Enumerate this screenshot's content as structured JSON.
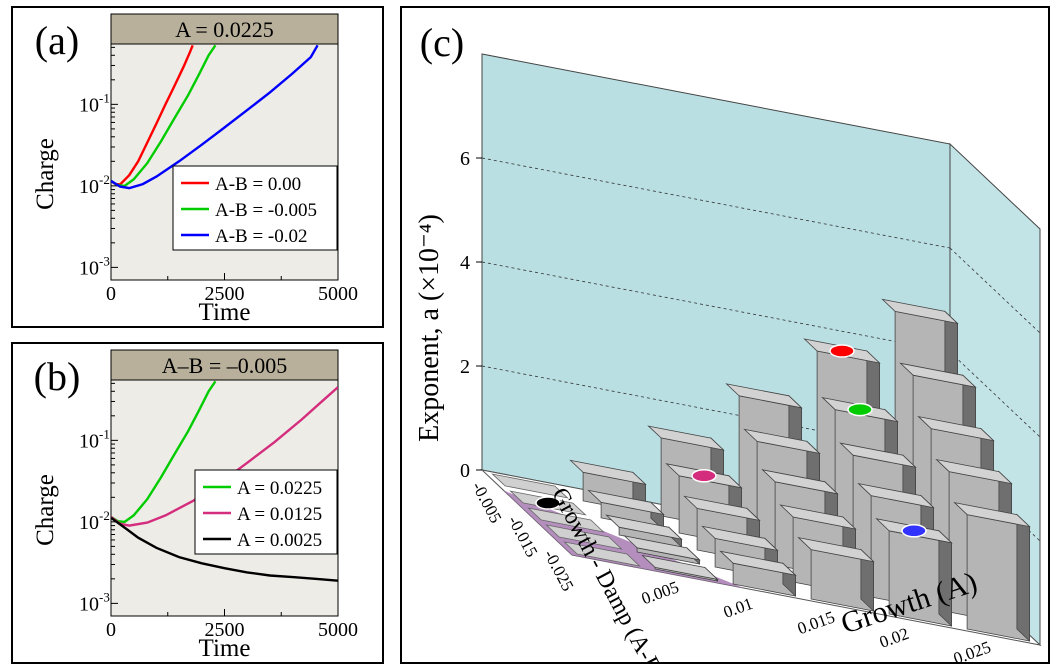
{
  "chart_data": [
    {
      "panel": "(a)",
      "type": "line",
      "title": "A = 0.0225",
      "xlabel": "Time",
      "ylabel": "Charge",
      "yscale": "log",
      "xlim": [
        0,
        5000
      ],
      "ylim": [
        0.0007,
        0.55
      ],
      "x_ticks": [
        "0",
        "2500",
        "5000"
      ],
      "y_ticks": [
        "10",
        "10",
        "10"
      ],
      "y_tick_exponents": [
        "-3",
        "-2",
        "-1"
      ],
      "legend_position": "bottom-right",
      "series": [
        {
          "name": "A-B = 0.00",
          "color": "#ff0000",
          "points": [
            [
              0,
              0.0115
            ],
            [
              100,
              0.0105
            ],
            [
              200,
              0.0104
            ],
            [
              400,
              0.0135
            ],
            [
              600,
              0.02
            ],
            [
              800,
              0.034
            ],
            [
              1000,
              0.058
            ],
            [
              1200,
              0.1
            ],
            [
              1400,
              0.17
            ],
            [
              1600,
              0.29
            ],
            [
              1750,
              0.45
            ],
            [
              1800,
              0.53
            ]
          ]
        },
        {
          "name": "A-B = -0.005",
          "color": "#00cc00",
          "points": [
            [
              0,
              0.0115
            ],
            [
              150,
              0.0102
            ],
            [
              300,
              0.01
            ],
            [
              500,
              0.012
            ],
            [
              800,
              0.019
            ],
            [
              1100,
              0.035
            ],
            [
              1400,
              0.068
            ],
            [
              1700,
              0.13
            ],
            [
              1950,
              0.24
            ],
            [
              2150,
              0.4
            ],
            [
              2300,
              0.53
            ]
          ]
        },
        {
          "name": "A-B = -0.02",
          "color": "#0000ff",
          "points": [
            [
              0,
              0.0115
            ],
            [
              200,
              0.0098
            ],
            [
              400,
              0.0094
            ],
            [
              700,
              0.0105
            ],
            [
              1000,
              0.013
            ],
            [
              1500,
              0.02
            ],
            [
              2000,
              0.032
            ],
            [
              2500,
              0.052
            ],
            [
              3000,
              0.085
            ],
            [
              3500,
              0.14
            ],
            [
              4000,
              0.24
            ],
            [
              4400,
              0.38
            ],
            [
              4550,
              0.53
            ]
          ]
        }
      ]
    },
    {
      "panel": "(b)",
      "type": "line",
      "title": "A–B = –0.005",
      "xlabel": "Time",
      "ylabel": "Charge",
      "yscale": "log",
      "xlim": [
        0,
        5000
      ],
      "ylim": [
        0.0007,
        0.55
      ],
      "x_ticks": [
        "0",
        "2500",
        "5000"
      ],
      "y_ticks": [
        "10",
        "10",
        "10"
      ],
      "y_tick_exponents": [
        "-3",
        "-2",
        "-1"
      ],
      "legend_position": "right",
      "series": [
        {
          "name": "A = 0.0225",
          "color": "#00cc00",
          "points": [
            [
              0,
              0.0115
            ],
            [
              150,
              0.0102
            ],
            [
              300,
              0.01
            ],
            [
              500,
              0.012
            ],
            [
              800,
              0.019
            ],
            [
              1100,
              0.035
            ],
            [
              1400,
              0.068
            ],
            [
              1700,
              0.13
            ],
            [
              1950,
              0.24
            ],
            [
              2150,
              0.4
            ],
            [
              2300,
              0.53
            ]
          ]
        },
        {
          "name": "A = 0.0125",
          "color": "#d42d7d",
          "points": [
            [
              0,
              0.0115
            ],
            [
              200,
              0.0095
            ],
            [
              400,
              0.009
            ],
            [
              800,
              0.0098
            ],
            [
              1200,
              0.012
            ],
            [
              1800,
              0.018
            ],
            [
              2400,
              0.03
            ],
            [
              3000,
              0.053
            ],
            [
              3600,
              0.095
            ],
            [
              4200,
              0.18
            ],
            [
              4700,
              0.32
            ],
            [
              5000,
              0.45
            ]
          ]
        },
        {
          "name": "A = 0.0025",
          "color": "#000000",
          "points": [
            [
              0,
              0.0112
            ],
            [
              300,
              0.0085
            ],
            [
              600,
              0.0064
            ],
            [
              1000,
              0.0048
            ],
            [
              1500,
              0.0037
            ],
            [
              2000,
              0.0031
            ],
            [
              2500,
              0.0027
            ],
            [
              3000,
              0.0024
            ],
            [
              3500,
              0.0022
            ],
            [
              4000,
              0.0021
            ],
            [
              4500,
              0.002
            ],
            [
              5000,
              0.0019
            ]
          ]
        }
      ]
    },
    {
      "panel": "(c)",
      "type": "bar3d",
      "xlabel": "Growth (A)",
      "ylabel": "Growth - Damp (A-B)",
      "zlabel": "Exponent, a (×10⁻⁴)",
      "z_ticks": [
        "0",
        "2",
        "4",
        "6"
      ],
      "zlim": [
        0,
        7
      ],
      "growth_values": [
        0.0025,
        0.0075,
        0.0125,
        0.0175,
        0.0225,
        0.0275
      ],
      "growth_ticks": [
        "0.005",
        "0.01",
        "0.015",
        "0.02",
        "0.025"
      ],
      "damp_values": [
        -0.0025,
        -0.0075,
        -0.0125,
        -0.0175,
        -0.0225
      ],
      "damp_ticks": [
        "-0.005",
        "-0.015",
        "-0.025"
      ],
      "heights": [
        [
          0.0,
          0.55,
          1.5,
          2.6,
          3.75,
          4.8
        ],
        [
          0.0,
          0.3,
          1.1,
          2.05,
          2.95,
          3.9
        ],
        [
          0.0,
          0.15,
          0.8,
          1.6,
          2.4,
          3.2
        ],
        [
          0.0,
          0.08,
          0.55,
          1.25,
          1.95,
          2.7
        ],
        [
          0.0,
          0.03,
          0.4,
          0.95,
          1.6,
          2.2
        ]
      ],
      "markers": [
        {
          "growth_index": 4,
          "damp_index": 0,
          "color": "#ff0000"
        },
        {
          "growth_index": 4,
          "damp_index": 1,
          "color": "#00cc00"
        },
        {
          "growth_index": 4,
          "damp_index": 4,
          "color": "#3333ff"
        },
        {
          "growth_index": 2,
          "damp_index": 1,
          "color": "#d42d7d"
        },
        {
          "growth_index": 0,
          "damp_index": 1,
          "color": "#000000"
        }
      ],
      "colors": {
        "wall": "#b9dfe3",
        "floor_shade": "#a77bb3",
        "bar_top": "#d2d2d2",
        "bar_front": "#b5b5b5",
        "bar_side": "#6f6f6f"
      }
    }
  ]
}
